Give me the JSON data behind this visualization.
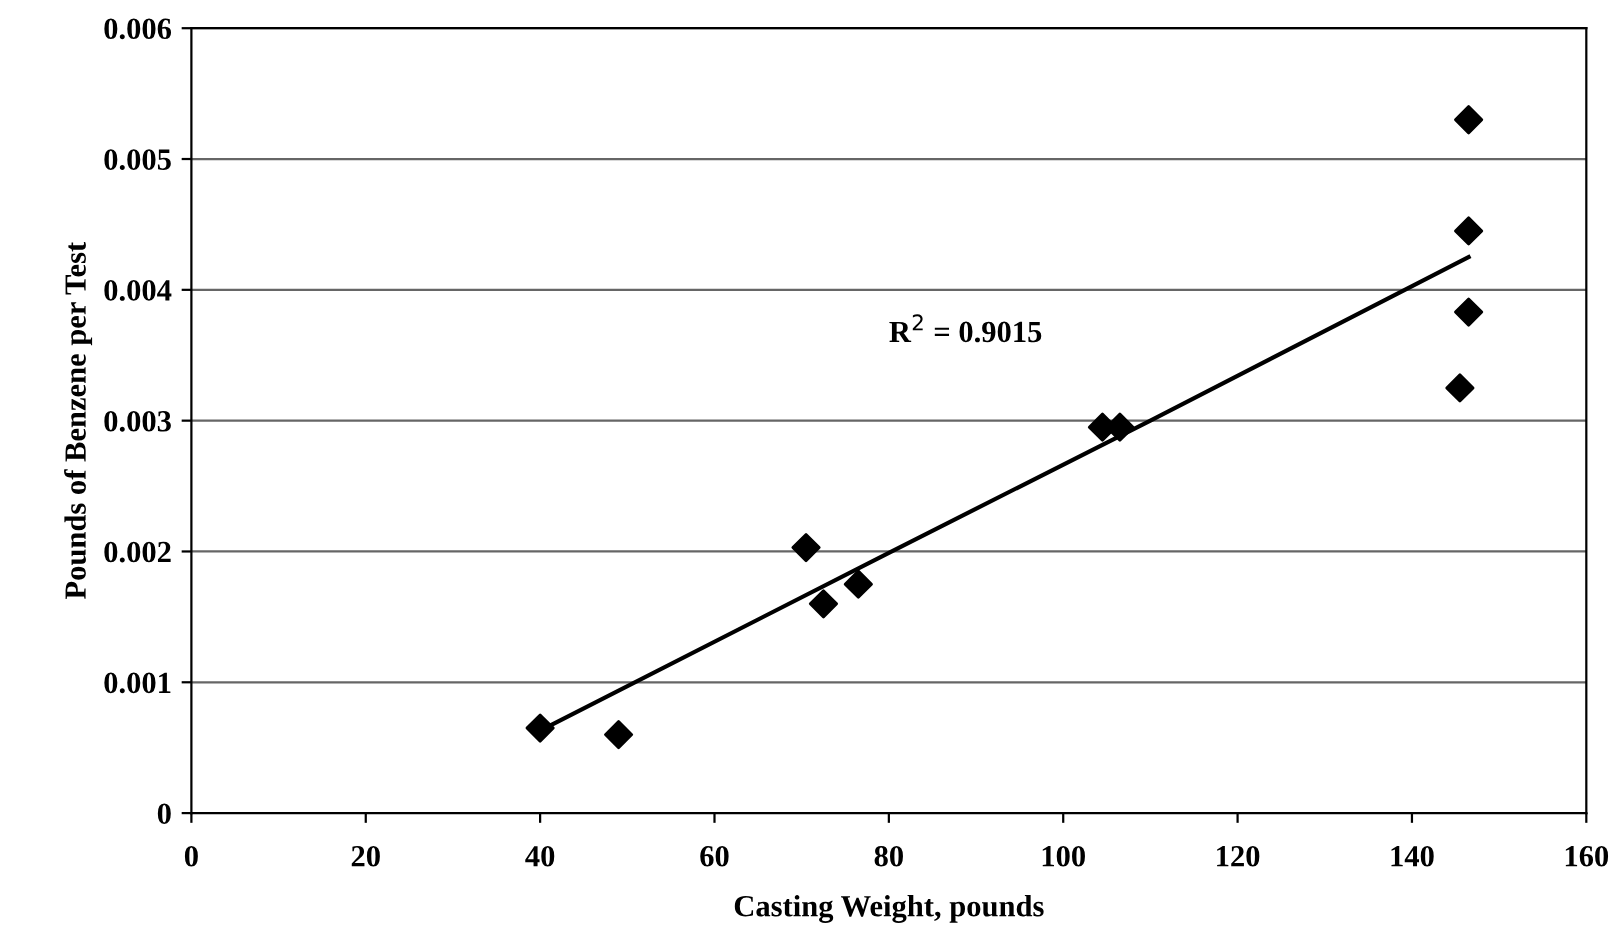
{
  "chart_data": {
    "type": "scatter",
    "xlabel": "Casting Weight, pounds",
    "ylabel": "Pounds of Benzene per Test",
    "annotations": [
      "R$^{2}$ = 0.9015"
    ],
    "series": [
      {
        "color": "#000000",
        "marker": "diamond",
        "x": [
          40,
          49,
          70.5,
          72.5,
          76.5,
          104.5,
          106.5,
          145.5,
          146.5,
          146.5,
          146.5
        ],
        "values": [
          0.00065,
          0.0006,
          0.00203,
          0.0016,
          0.00175,
          0.00295,
          0.00295,
          0.00325,
          0.00383,
          0.00445,
          0.0053
        ]
      },
      {
        "type": "line",
        "color": "#000000",
        "x": [
          40,
          80,
          110,
          146.5
        ],
        "values": [
          0.00063,
          0.00199,
          0.003,
          0.00425
        ]
      }
    ],
    "xlim": [
      0,
      160
    ],
    "xticks": [
      0,
      20,
      40,
      60,
      80,
      100,
      120,
      140,
      160
    ],
    "ylim": [
      0,
      0.006
    ],
    "yticks": [
      0,
      0.001,
      0.002,
      0.003,
      0.004,
      0.005,
      0.006
    ],
    "grid": "y"
  }
}
